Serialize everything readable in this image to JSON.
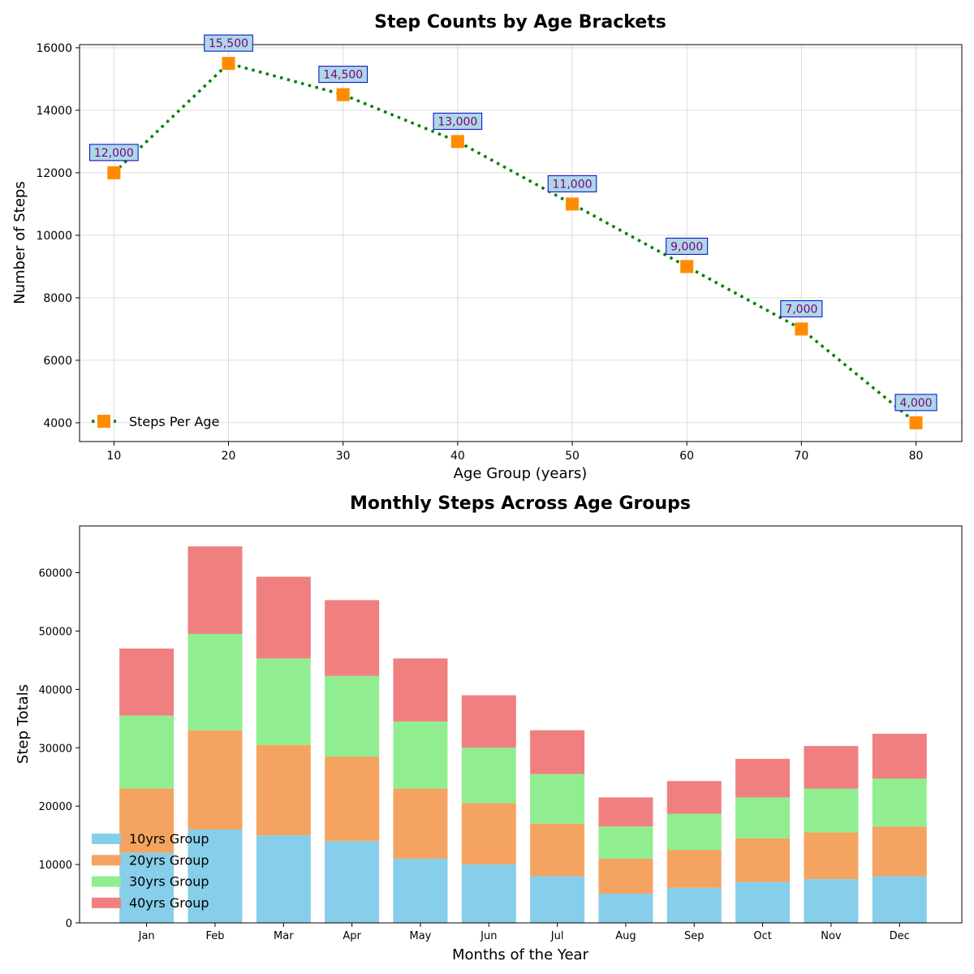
{
  "chart_data": [
    {
      "type": "line",
      "title": "Step Counts by Age Brackets",
      "xlabel": "Age Group (years)",
      "ylabel": "Number of Steps",
      "xlim": [
        7,
        84
      ],
      "ylim": [
        3400,
        16100
      ],
      "x_ticks": [
        10,
        20,
        30,
        40,
        50,
        60,
        70,
        80
      ],
      "y_ticks": [
        4000,
        6000,
        8000,
        10000,
        12000,
        14000,
        16000
      ],
      "grid": true,
      "legend": "lower-left",
      "series": [
        {
          "name": "Steps Per Age",
          "color": "#008000",
          "marker_color": "#ff8c00",
          "line_style": "dotted",
          "x": [
            10,
            20,
            30,
            40,
            50,
            60,
            70,
            80
          ],
          "y": [
            12000,
            15500,
            14500,
            13000,
            11000,
            9000,
            7000,
            4000
          ],
          "data_labels": [
            "12,000",
            "15,500",
            "14,500",
            "13,000",
            "11,000",
            "9,000",
            "7,000",
            "4,000"
          ]
        }
      ]
    },
    {
      "type": "bar",
      "stacked": true,
      "title": "Monthly Steps Across Age Groups",
      "xlabel": "Months of the Year",
      "ylabel": "Step Totals",
      "ylim": [
        0,
        68000
      ],
      "y_ticks": [
        0,
        10000,
        20000,
        30000,
        40000,
        50000,
        60000
      ],
      "legend": "lower-left",
      "categories": [
        "Jan",
        "Feb",
        "Mar",
        "Apr",
        "May",
        "Jun",
        "Jul",
        "Aug",
        "Sep",
        "Oct",
        "Nov",
        "Dec"
      ],
      "series": [
        {
          "name": "10yrs Group",
          "color": "#87ceeb",
          "values": [
            12000,
            16000,
            15000,
            14000,
            11000,
            10000,
            8000,
            5000,
            6000,
            7000,
            7500,
            8000
          ]
        },
        {
          "name": "20yrs Group",
          "color": "#f4a460",
          "values": [
            11000,
            17000,
            15500,
            14500,
            12000,
            10500,
            9000,
            6000,
            6500,
            7500,
            8000,
            8500
          ]
        },
        {
          "name": "30yrs Group",
          "color": "#90ee90",
          "values": [
            12500,
            16500,
            14800,
            13800,
            11500,
            9500,
            8500,
            5500,
            6200,
            7000,
            7500,
            8200
          ]
        },
        {
          "name": "40yrs Group",
          "color": "#f08080",
          "values": [
            11500,
            15000,
            14000,
            13000,
            10800,
            9000,
            7500,
            5000,
            5600,
            6600,
            7300,
            7700
          ]
        }
      ]
    }
  ]
}
